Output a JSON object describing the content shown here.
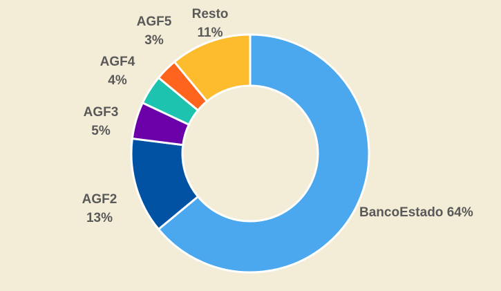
{
  "chart_data": {
    "type": "pie",
    "variant": "donut",
    "title": "",
    "categories": [
      "BancoEstado",
      "AGF2",
      "AGF3",
      "AGF4",
      "AGF5",
      "Resto"
    ],
    "values": [
      64,
      13,
      5,
      4,
      3,
      11
    ],
    "unit": "%",
    "labels": [
      {
        "name": "BancoEstado",
        "value_text": "64%",
        "layout": "inline"
      },
      {
        "name": "AGF2",
        "value_text": "13%",
        "layout": "stacked"
      },
      {
        "name": "AGF3",
        "value_text": "5%",
        "layout": "stacked"
      },
      {
        "name": "AGF4",
        "value_text": "4%",
        "layout": "stacked"
      },
      {
        "name": "AGF5",
        "value_text": "3%",
        "layout": "stacked"
      },
      {
        "name": "Resto",
        "value_text": "11%",
        "layout": "stacked"
      }
    ],
    "colors": [
      "#4ba8ee",
      "#0252a3",
      "#6b00a8",
      "#1ec3b0",
      "#ff641e",
      "#fdbb2e"
    ],
    "legend": "none",
    "start": "top",
    "direction": "clockwise"
  }
}
